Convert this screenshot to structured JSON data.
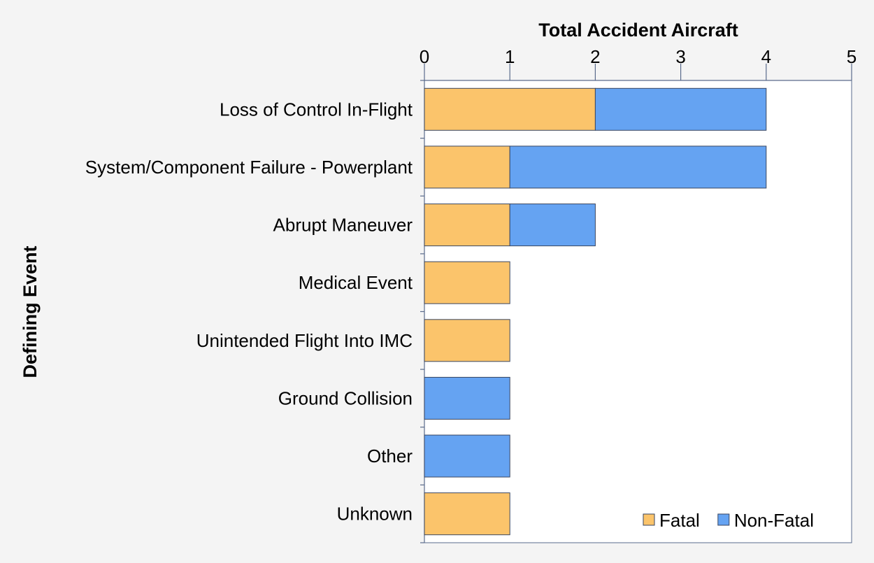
{
  "chart_data": {
    "type": "bar",
    "orientation": "horizontal",
    "stacked": true,
    "title": "",
    "xlabel": "Total Accident Aircraft",
    "ylabel": "Defining Event",
    "xlim": [
      0,
      5
    ],
    "x_ticks": [
      "0",
      "1",
      "2",
      "3",
      "4",
      "5"
    ],
    "x_axis_position": "top",
    "grid": false,
    "legend_position": "bottom-right",
    "categories": [
      "Loss of Control In-Flight",
      "System/Component Failure - Powerplant",
      "Abrupt Maneuver",
      "Medical Event",
      "Unintended Flight Into IMC",
      "Ground Collision",
      "Other",
      "Unknown"
    ],
    "series": [
      {
        "name": "Fatal",
        "color": "#fbc46b",
        "values": [
          2,
          1,
          1,
          1,
          1,
          0,
          0,
          1
        ]
      },
      {
        "name": "Non-Fatal",
        "color": "#65a3f2",
        "values": [
          2,
          3,
          1,
          0,
          0,
          1,
          1,
          0
        ]
      }
    ],
    "colors": {
      "background": "#f4f4f4",
      "plot_background": "#ffffff",
      "axis": "#5a6b8c",
      "bar_edge": "#3a4660"
    }
  }
}
